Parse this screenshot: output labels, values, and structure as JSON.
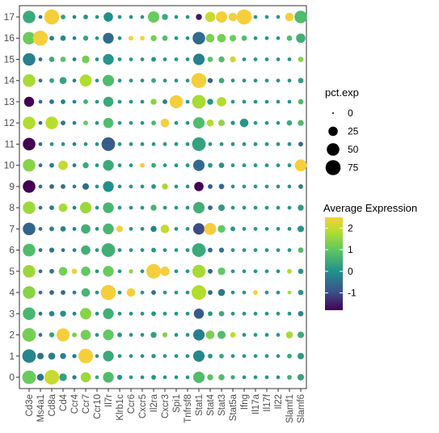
{
  "chart_data": {
    "type": "dotplot",
    "xlabel": "",
    "ylabel": "",
    "genes": [
      "Cd3e",
      "Ms4a1",
      "Cd8a",
      "Cd4",
      "Ccr4",
      "Ccr7",
      "Ccr10",
      "Il7r",
      "Klrb1c",
      "Ccr6",
      "Cxcr5",
      "Il2ra",
      "Cxcr3",
      "Spi1",
      "Tnfrsf8",
      "Stat1",
      "Stat4",
      "Stat3",
      "Stat5a",
      "Ifng",
      "Il17a",
      "Il17f",
      "Il22",
      "Slamf1",
      "Slamf6"
    ],
    "clusters": [
      "0",
      "1",
      "2",
      "3",
      "4",
      "5",
      "6",
      "7",
      "8",
      "9",
      "10",
      "11",
      "12",
      "13",
      "14",
      "15",
      "16",
      "17"
    ],
    "size_legend": {
      "title": "pct.exp",
      "breaks": [
        0,
        25,
        50,
        75
      ]
    },
    "color_legend": {
      "title": "Average Expression",
      "breaks": [
        -1,
        0,
        1,
        2
      ],
      "range": [
        -1.8,
        2.5
      ],
      "colors": [
        "#440154",
        "#3b528b",
        "#21908c",
        "#5dc863",
        "#b5de2b",
        "#f4cf3b"
      ]
    },
    "pct": [
      [
        60,
        12,
        70,
        15,
        3,
        30,
        2,
        35,
        5,
        2,
        2,
        4,
        2,
        2,
        2,
        40,
        8,
        8,
        3,
        2,
        2,
        2,
        2,
        4,
        10
      ],
      [
        60,
        10,
        12,
        8,
        3,
        70,
        2,
        35,
        2,
        2,
        2,
        3,
        2,
        2,
        2,
        40,
        4,
        4,
        2,
        2,
        2,
        2,
        2,
        4,
        10
      ],
      [
        60,
        2,
        5,
        55,
        4,
        30,
        2,
        35,
        4,
        2,
        2,
        8,
        5,
        2,
        2,
        40,
        20,
        18,
        6,
        2,
        2,
        2,
        2,
        12,
        10
      ],
      [
        50,
        2,
        6,
        8,
        2,
        40,
        2,
        35,
        2,
        2,
        2,
        4,
        2,
        2,
        2,
        30,
        4,
        6,
        2,
        2,
        2,
        2,
        2,
        2,
        6
      ],
      [
        50,
        2,
        4,
        4,
        2,
        20,
        2,
        75,
        2,
        20,
        2,
        4,
        2,
        2,
        2,
        70,
        4,
        12,
        2,
        2,
        4,
        2,
        2,
        2,
        6
      ],
      [
        50,
        2,
        4,
        20,
        6,
        25,
        2,
        35,
        2,
        3,
        2,
        70,
        25,
        2,
        2,
        55,
        4,
        15,
        2,
        2,
        2,
        2,
        2,
        4,
        6
      ],
      [
        50,
        2,
        5,
        2,
        2,
        25,
        2,
        60,
        2,
        2,
        2,
        4,
        2,
        2,
        2,
        60,
        4,
        5,
        2,
        2,
        2,
        2,
        2,
        2,
        6
      ],
      [
        50,
        2,
        4,
        6,
        2,
        25,
        2,
        35,
        10,
        2,
        2,
        8,
        20,
        2,
        2,
        40,
        45,
        15,
        4,
        2,
        2,
        2,
        2,
        2,
        10
      ],
      [
        50,
        2,
        4,
        20,
        2,
        40,
        2,
        35,
        2,
        2,
        2,
        8,
        2,
        2,
        2,
        40,
        4,
        10,
        2,
        2,
        2,
        2,
        2,
        2,
        8
      ],
      [
        50,
        2,
        4,
        4,
        2,
        10,
        2,
        35,
        2,
        2,
        2,
        4,
        8,
        2,
        2,
        25,
        4,
        6,
        2,
        2,
        2,
        2,
        2,
        2,
        4
      ],
      [
        50,
        2,
        4,
        25,
        2,
        8,
        2,
        35,
        2,
        2,
        4,
        4,
        2,
        2,
        2,
        40,
        4,
        6,
        2,
        2,
        2,
        2,
        2,
        2,
        45
      ],
      [
        50,
        2,
        2,
        2,
        2,
        2,
        2,
        60,
        2,
        2,
        2,
        2,
        2,
        2,
        2,
        60,
        2,
        2,
        2,
        2,
        2,
        2,
        2,
        2,
        4
      ],
      [
        50,
        2,
        50,
        4,
        2,
        4,
        2,
        30,
        2,
        2,
        2,
        4,
        20,
        2,
        2,
        40,
        12,
        10,
        3,
        20,
        2,
        2,
        2,
        6,
        8
      ],
      [
        30,
        2,
        4,
        4,
        2,
        4,
        2,
        30,
        2,
        2,
        2,
        8,
        4,
        55,
        2,
        60,
        8,
        25,
        2,
        2,
        2,
        2,
        2,
        2,
        6
      ],
      [
        50,
        2,
        4,
        12,
        2,
        45,
        2,
        40,
        2,
        2,
        2,
        4,
        2,
        2,
        2,
        75,
        5,
        6,
        2,
        2,
        2,
        2,
        2,
        2,
        6
      ],
      [
        50,
        2,
        6,
        6,
        2,
        15,
        2,
        35,
        2,
        2,
        2,
        4,
        2,
        2,
        2,
        40,
        6,
        8,
        8,
        2,
        2,
        2,
        2,
        2,
        6
      ],
      [
        50,
        75,
        4,
        6,
        2,
        5,
        2,
        35,
        2,
        4,
        4,
        8,
        6,
        2,
        2,
        50,
        20,
        20,
        10,
        6,
        2,
        2,
        2,
        6,
        25
      ],
      [
        50,
        2,
        75,
        4,
        2,
        4,
        2,
        25,
        2,
        2,
        2,
        40,
        8,
        2,
        2,
        8,
        30,
        40,
        20,
        75,
        2,
        2,
        2,
        20,
        50
      ]
    ],
    "avg": [
      [
        0.9,
        -0.5,
        1.9,
        0.2,
        -0.3,
        1.4,
        0.2,
        0.6,
        0.0,
        0.0,
        0.0,
        0.0,
        0.0,
        0.0,
        0.0,
        0.6,
        0.7,
        0.6,
        0.3,
        0.0,
        0.0,
        0.0,
        0.0,
        0.4,
        0.2
      ],
      [
        -0.2,
        -0.5,
        -0.3,
        -0.3,
        -0.3,
        2.5,
        0.0,
        0.3,
        0.0,
        0.0,
        0.0,
        0.0,
        0.0,
        0.0,
        0.0,
        -0.2,
        0.0,
        0.3,
        0.0,
        0.0,
        0.0,
        0.0,
        0.0,
        0.3,
        0.1
      ],
      [
        1.0,
        -0.5,
        0.2,
        2.5,
        1.0,
        1.0,
        0.0,
        0.8,
        0.0,
        0.0,
        0.0,
        0.2,
        1.1,
        0.0,
        0.0,
        -0.3,
        1.1,
        0.6,
        1.7,
        0.0,
        0.0,
        0.0,
        0.0,
        1.5,
        0.3
      ],
      [
        0.5,
        -0.5,
        -0.2,
        -0.1,
        -0.3,
        1.2,
        0.0,
        0.4,
        0.0,
        0.0,
        0.0,
        0.0,
        0.0,
        0.0,
        0.0,
        -0.8,
        0.0,
        0.3,
        0.0,
        0.0,
        0.0,
        0.0,
        0.0,
        0.0,
        -0.2
      ],
      [
        1.2,
        -0.5,
        -0.6,
        -0.6,
        -0.3,
        0.5,
        0.0,
        2.5,
        0.0,
        2.5,
        0.0,
        -0.5,
        0.0,
        0.0,
        0.0,
        1.6,
        -0.6,
        -0.4,
        0.0,
        0.0,
        2.5,
        0.0,
        0.0,
        1.5,
        0.0
      ],
      [
        1.4,
        -0.5,
        -0.4,
        1.0,
        2.5,
        0.8,
        0.0,
        0.9,
        0.0,
        1.3,
        0.0,
        2.5,
        2.5,
        0.0,
        0.0,
        1.5,
        -0.7,
        0.8,
        0.0,
        0.0,
        0.0,
        0.0,
        0.0,
        1.6,
        0.0
      ],
      [
        0.6,
        -0.5,
        -0.4,
        -0.5,
        -0.3,
        0.4,
        0.0,
        0.4,
        0.0,
        0.0,
        0.0,
        0.0,
        0.0,
        0.0,
        0.0,
        0.3,
        -0.6,
        -0.4,
        0.0,
        0.0,
        0.0,
        0.0,
        0.0,
        0.0,
        0.6
      ],
      [
        -0.7,
        -0.5,
        -0.3,
        -0.3,
        -0.3,
        0.4,
        0.0,
        0.5,
        2.5,
        0.0,
        0.0,
        -0.3,
        1.8,
        0.0,
        0.0,
        -1.0,
        2.5,
        0.8,
        0.0,
        0.0,
        0.0,
        0.0,
        0.0,
        0.0,
        0.0
      ],
      [
        1.4,
        -0.5,
        -0.3,
        1.5,
        -0.3,
        1.4,
        0.0,
        0.5,
        0.0,
        0.0,
        0.0,
        0.5,
        0.0,
        0.0,
        0.0,
        0.4,
        -0.6,
        0.1,
        0.0,
        0.0,
        0.0,
        0.0,
        0.0,
        0.0,
        0.1
      ],
      [
        -1.8,
        -0.5,
        -0.6,
        -0.5,
        -0.3,
        -0.6,
        0.0,
        -0.1,
        0.0,
        0.0,
        0.0,
        0.0,
        1.5,
        0.0,
        0.0,
        -1.8,
        -0.8,
        -0.6,
        0.0,
        0.0,
        0.0,
        0.0,
        0.0,
        0.0,
        -0.3
      ],
      [
        1.2,
        -0.5,
        -0.3,
        1.9,
        -0.3,
        0.3,
        0.0,
        0.3,
        0.0,
        0.0,
        2.5,
        0.3,
        0.0,
        0.0,
        0.0,
        -0.6,
        0.0,
        0.0,
        0.0,
        0.0,
        0.0,
        0.0,
        0.0,
        0.0,
        2.5
      ],
      [
        -1.8,
        -0.5,
        0.0,
        0.0,
        -0.3,
        0.0,
        0.0,
        -0.8,
        0.0,
        0.0,
        0.0,
        0.0,
        0.0,
        0.0,
        0.0,
        0.2,
        0.0,
        0.0,
        0.0,
        0.0,
        0.0,
        0.0,
        0.0,
        0.0,
        -0.6
      ],
      [
        1.6,
        -0.5,
        1.7,
        -0.4,
        -0.3,
        0.8,
        0.0,
        0.6,
        0.0,
        0.0,
        0.0,
        0.5,
        2.5,
        0.0,
        0.0,
        0.6,
        1.6,
        1.3,
        0.0,
        0.0,
        0.0,
        0.0,
        0.0,
        0.3,
        0.6
      ],
      [
        -1.8,
        -0.5,
        -0.4,
        -0.3,
        -0.3,
        0.4,
        0.0,
        0.3,
        0.0,
        0.0,
        0.0,
        1.2,
        -0.3,
        2.5,
        0.0,
        1.5,
        0.0,
        1.6,
        0.0,
        0.0,
        0.0,
        0.0,
        0.0,
        0.0,
        0.6
      ],
      [
        1.5,
        -0.5,
        0.2,
        0.2,
        -0.3,
        1.6,
        0.0,
        0.6,
        0.0,
        0.0,
        0.0,
        0.3,
        0.0,
        0.0,
        0.0,
        2.5,
        -0.7,
        0.3,
        0.0,
        0.0,
        0.0,
        0.0,
        0.0,
        0.0,
        0.1
      ],
      [
        -0.3,
        -0.5,
        0.3,
        0.7,
        -0.3,
        1.0,
        0.0,
        0.0,
        0.0,
        0.0,
        0.0,
        0.0,
        0.0,
        0.0,
        0.0,
        -0.3,
        0.7,
        0.6,
        2.0,
        0.0,
        0.0,
        0.0,
        0.0,
        0.0,
        1.2
      ],
      [
        0.9,
        2.5,
        -0.3,
        -0.2,
        -0.3,
        0.2,
        0.0,
        -0.6,
        0.0,
        2.5,
        2.5,
        1.0,
        0.6,
        0.0,
        0.0,
        -0.6,
        1.1,
        1.0,
        0.9,
        0.6,
        0.0,
        0.0,
        0.0,
        0.6,
        0.4
      ],
      [
        0.3,
        -0.5,
        2.5,
        0.2,
        -0.3,
        0.0,
        0.0,
        -0.1,
        0.0,
        0.0,
        0.0,
        0.9,
        0.3,
        0.0,
        0.0,
        -1.6,
        1.9,
        2.5,
        2.5,
        2.5,
        0.0,
        0.0,
        0.0,
        2.5,
        0.6
      ]
    ]
  }
}
